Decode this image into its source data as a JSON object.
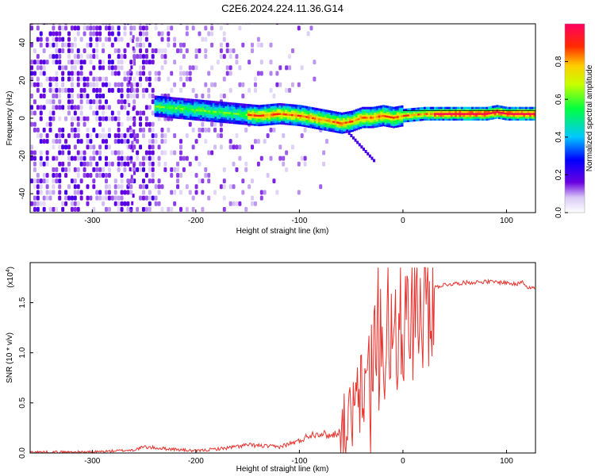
{
  "title": "C2E6.2024.224.11.36.G14",
  "chart_data": [
    {
      "type": "heatmap",
      "xlabel": "Height of straight line (km)",
      "ylabel": "Frequency (Hz)",
      "xlim": [
        -360,
        128
      ],
      "ylim": [
        -50,
        50
      ],
      "xticks": [
        -300,
        -200,
        -100,
        0,
        100
      ],
      "yticks": [
        -40,
        -20,
        0,
        20,
        40
      ],
      "colorbar": {
        "label": "Normalized spectral amplitude",
        "range": [
          0,
          1
        ],
        "ticks": [
          "0.0",
          "0.2",
          "0.4",
          "0.6",
          "0.8"
        ],
        "colormap": "rainbow (white-violet-blue-cyan-green-yellow-red-magenta)"
      },
      "ridge": {
        "x": [
          -240,
          -220,
          -200,
          -180,
          -160,
          -140,
          -120,
          -100,
          -90,
          -80,
          -70,
          -60,
          -50,
          -40,
          -30,
          -20,
          -10,
          0,
          20,
          40,
          60,
          80,
          90,
          100,
          110,
          125
        ],
        "y": [
          6,
          5,
          4,
          3,
          2,
          1,
          2,
          1,
          0,
          -1,
          -2,
          -3,
          -2,
          0,
          0,
          1,
          0,
          1,
          2,
          2,
          2,
          2,
          3,
          2,
          2,
          2
        ]
      }
    },
    {
      "type": "line",
      "xlabel": "Height of straight line (km)",
      "ylabel": "SNR (10 * v/v)",
      "yscale_label": "(x10",
      "yscale_exp": "4",
      "xlim": [
        -360,
        128
      ],
      "ylim": [
        0,
        1.9
      ],
      "xticks": [
        -300,
        -200,
        -100,
        0,
        100
      ],
      "yticks": [
        "0.0",
        "0.5",
        "1.0",
        "1.5"
      ],
      "series": [
        {
          "color": "#e8322d",
          "x": [
            -360,
            -300,
            -260,
            -250,
            -200,
            -170,
            -150,
            -120,
            -100,
            -90,
            -80,
            -70,
            -60,
            -50,
            -40,
            -30,
            -20,
            -10,
            0,
            10,
            20,
            30,
            40,
            60,
            80,
            100,
            110,
            115,
            120,
            128
          ],
          "y": [
            0.01,
            0.01,
            0.03,
            0.06,
            0.02,
            0.05,
            0.08,
            0.06,
            0.12,
            0.18,
            0.2,
            0.17,
            0.22,
            0.35,
            0.6,
            0.95,
            1.05,
            1.2,
            1.3,
            1.45,
            1.6,
            1.65,
            1.68,
            1.7,
            1.71,
            1.7,
            1.68,
            1.72,
            1.66,
            1.64
          ]
        }
      ]
    }
  ]
}
